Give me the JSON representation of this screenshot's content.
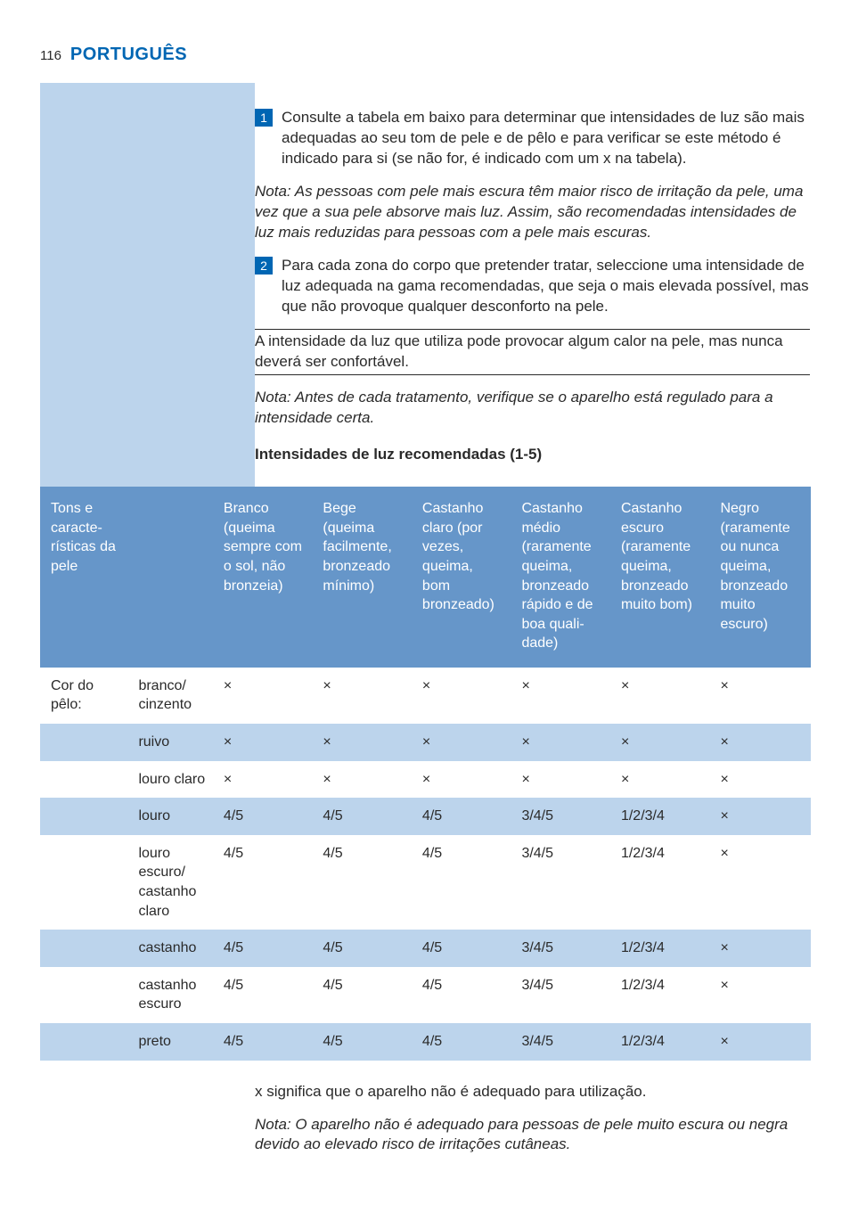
{
  "header": {
    "page_number": "116",
    "language": "PORTUGUÊS"
  },
  "steps": [
    {
      "num": "1",
      "text": "Consulte a tabela em baixo para determinar que intensidades de luz são mais adequadas ao seu tom de pele e de pêlo e para verificar se este método é indicado para si (se não for, é indicado com um x na tabela)."
    },
    {
      "num": "2",
      "text": "Para cada zona do corpo que pretender tratar, seleccione uma intensidade de luz adequada na gama recomendadas, que seja o mais elevada possível, mas que não provoque qualquer desconforto na pele."
    }
  ],
  "note1": "Nota: As pessoas com pele mais escura têm maior risco de irritação da pele, uma vez que a sua pele absorve mais luz. Assim, são recomendadas intensidades de luz mais reduzidas para pessoas com a pele mais escuras.",
  "emphasis": "A intensidade da luz que utiliza pode provocar algum calor na pele, mas nunca deverá ser confortável.",
  "note2": "Nota: Antes de cada tratamento, verifique se o aparelho está regulado para a intensidade certa.",
  "section_title": "Intensidades de luz recomendadas (1-5)",
  "table": {
    "columns": [
      "Tons e caracte­rísticas da pele",
      "",
      "Branco (queima sempre com o sol, não bronzeia)",
      "Bege (queima facilmen­te, bron­zeado mínimo)",
      "Castanho claro (por vezes, queima, bom bronzea­do)",
      "Castanho médio (raramente queima, bronzeado rápido e de boa quali­dade)",
      "Castanho escuro (raramente queima, bronzea­do muito bom)",
      "Negro (raramente ou nunca queima, bronzea­do muito escuro)"
    ],
    "rows": [
      {
        "striped": false,
        "cells": [
          "Cor do pêlo:",
          "branco/ cinzento",
          "×",
          "×",
          "×",
          "×",
          "×",
          "×"
        ]
      },
      {
        "striped": true,
        "cells": [
          "",
          "ruivo",
          "×",
          "×",
          "×",
          "×",
          "×",
          "×"
        ]
      },
      {
        "striped": false,
        "cells": [
          "",
          "louro claro",
          "×",
          "×",
          "×",
          "×",
          "×",
          "×"
        ]
      },
      {
        "striped": true,
        "cells": [
          "",
          "louro",
          "4/5",
          "4/5",
          "4/5",
          "3/4/5",
          "1/2/3/4",
          "×"
        ]
      },
      {
        "striped": false,
        "cells": [
          "",
          "louro escuro/ castanho claro",
          "4/5",
          "4/5",
          "4/5",
          "3/4/5",
          "1/2/3/4",
          "×"
        ]
      },
      {
        "striped": true,
        "cells": [
          "",
          "castanho",
          "4/5",
          "4/5",
          "4/5",
          "3/4/5",
          "1/2/3/4",
          "×"
        ]
      },
      {
        "striped": false,
        "cells": [
          "",
          "castanho escuro",
          "4/5",
          "4/5",
          "4/5",
          "3/4/5",
          "1/2/3/4",
          "×"
        ]
      },
      {
        "striped": true,
        "cells": [
          "",
          "preto",
          "4/5",
          "4/5",
          "4/5",
          "3/4/5",
          "1/2/3/4",
          "×"
        ]
      }
    ]
  },
  "footnote1": "x significa que o aparelho não é adequado para utilização.",
  "footnote2": "Nota: O aparelho não é adequado para pessoas de pele muito escura ou negra devido ao elevado risco de irritações cutâneas.",
  "colors": {
    "accent": "#0066b3",
    "band": "#bcd4ec",
    "thead": "#6696c9"
  }
}
